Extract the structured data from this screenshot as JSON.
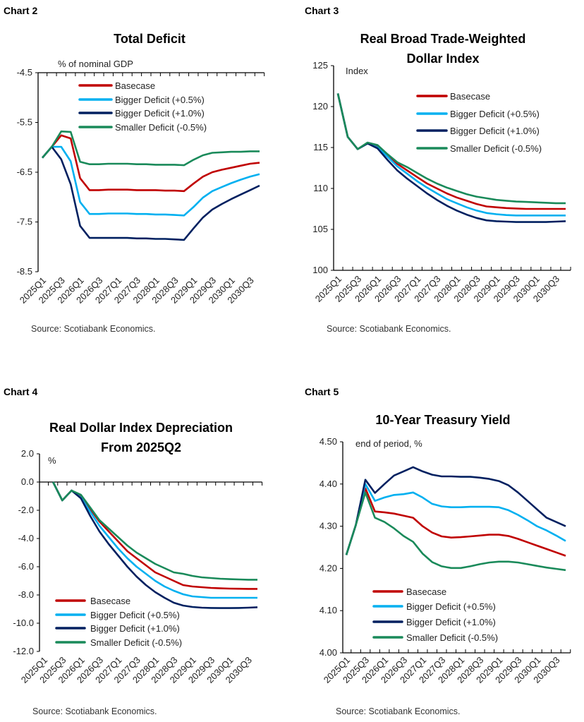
{
  "colors": {
    "Basecase": "#C00000",
    "Bigger Deficit (+0.5%)": "#00B0F0",
    "Bigger Deficit (+1.0%)": "#002060",
    "Smaller Deficit (-0.5%)": "#1A8A5A"
  },
  "chart_data": [
    {
      "header": "Chart 2",
      "title": [
        "Total Deficit"
      ],
      "type": "line",
      "unit_label": "% of nominal GDP",
      "x": [
        "2025Q1",
        "2025Q2",
        "2025Q3",
        "2025Q4",
        "2026Q1",
        "2026Q2",
        "2026Q3",
        "2026Q4",
        "2027Q1",
        "2027Q2",
        "2027Q3",
        "2027Q4",
        "2028Q1",
        "2028Q2",
        "2028Q3",
        "2028Q4",
        "2029Q1",
        "2029Q2",
        "2029Q3",
        "2029Q4",
        "2030Q1",
        "2030Q2",
        "2030Q3",
        "2030Q4"
      ],
      "xticklabels": [
        "2025Q1",
        "2025Q3",
        "2026Q1",
        "2026Q3",
        "2027Q1",
        "2027Q3",
        "2028Q1",
        "2028Q3",
        "2029Q1",
        "2029Q3",
        "2030Q1",
        "2030Q3"
      ],
      "ylim": [
        -8.5,
        -4.5
      ],
      "yticks": [
        "-4.5",
        "-5.5",
        "-6.5",
        "-7.5",
        "-8.5"
      ],
      "grid": false,
      "legend": "top",
      "source": "Source: Scotiabank Economics.",
      "series": [
        {
          "name": "Basecase",
          "values": [
            -6.21,
            -5.99,
            -5.76,
            -5.82,
            -6.62,
            -6.86,
            -6.86,
            -6.85,
            -6.85,
            -6.85,
            -6.86,
            -6.86,
            -6.86,
            -6.87,
            -6.87,
            -6.88,
            -6.73,
            -6.59,
            -6.5,
            -6.45,
            -6.41,
            -6.37,
            -6.33,
            -6.31
          ]
        },
        {
          "name": "Bigger Deficit (+0.5%)",
          "values": [
            -6.21,
            -5.99,
            -5.99,
            -6.28,
            -7.1,
            -7.34,
            -7.34,
            -7.33,
            -7.33,
            -7.33,
            -7.34,
            -7.34,
            -7.35,
            -7.35,
            -7.36,
            -7.37,
            -7.2,
            -7.01,
            -6.88,
            -6.8,
            -6.72,
            -6.65,
            -6.59,
            -6.54
          ]
        },
        {
          "name": "Bigger Deficit (+1.0%)",
          "values": [
            -6.21,
            -5.99,
            -6.24,
            -6.74,
            -7.58,
            -7.82,
            -7.82,
            -7.82,
            -7.82,
            -7.82,
            -7.83,
            -7.83,
            -7.84,
            -7.84,
            -7.85,
            -7.86,
            -7.63,
            -7.41,
            -7.25,
            -7.14,
            -7.04,
            -6.95,
            -6.86,
            -6.77
          ]
        },
        {
          "name": "Smaller Deficit (-0.5%)",
          "values": [
            -6.21,
            -5.99,
            -5.68,
            -5.69,
            -6.29,
            -6.34,
            -6.34,
            -6.33,
            -6.33,
            -6.33,
            -6.34,
            -6.34,
            -6.35,
            -6.35,
            -6.35,
            -6.36,
            -6.25,
            -6.16,
            -6.11,
            -6.1,
            -6.09,
            -6.09,
            -6.08,
            -6.08
          ]
        }
      ]
    },
    {
      "header": "Chart 3",
      "title": [
        "Real Broad Trade-Weighted",
        "Dollar Index"
      ],
      "type": "line",
      "unit_label": "Index",
      "x": [
        "2025Q1",
        "2025Q2",
        "2025Q3",
        "2025Q4",
        "2026Q1",
        "2026Q2",
        "2026Q3",
        "2026Q4",
        "2027Q1",
        "2027Q2",
        "2027Q3",
        "2027Q4",
        "2028Q1",
        "2028Q2",
        "2028Q3",
        "2028Q4",
        "2029Q1",
        "2029Q2",
        "2029Q3",
        "2029Q4",
        "2030Q1",
        "2030Q2",
        "2030Q3",
        "2030Q4"
      ],
      "xticklabels": [
        "2025Q1",
        "2025Q3",
        "2026Q1",
        "2026Q3",
        "2027Q1",
        "2027Q3",
        "2028Q1",
        "2028Q3",
        "2029Q1",
        "2029Q3",
        "2030Q1",
        "2030Q3"
      ],
      "ylim": [
        100,
        125
      ],
      "yticks": [
        "125",
        "120",
        "115",
        "110",
        "105",
        "100"
      ],
      "grid": false,
      "legend": "top-right",
      "source": "Source: Scotiabank Economics.",
      "series": [
        {
          "name": "Basecase",
          "values": [
            121.6,
            116.3,
            114.8,
            115.5,
            115.1,
            114.0,
            113.0,
            112.2,
            111.4,
            110.6,
            110.0,
            109.4,
            108.9,
            108.5,
            108.1,
            107.8,
            107.7,
            107.6,
            107.55,
            107.5,
            107.5,
            107.5,
            107.5,
            107.5
          ]
        },
        {
          "name": "Bigger Deficit (+0.5%)",
          "values": [
            121.6,
            116.3,
            114.8,
            115.5,
            115.0,
            113.9,
            112.7,
            111.8,
            110.9,
            110.1,
            109.4,
            108.7,
            108.2,
            107.7,
            107.3,
            107.0,
            106.85,
            106.75,
            106.7,
            106.7,
            106.7,
            106.7,
            106.7,
            106.7
          ]
        },
        {
          "name": "Bigger Deficit (+1.0%)",
          "values": [
            121.6,
            116.3,
            114.8,
            115.5,
            114.9,
            113.5,
            112.2,
            111.2,
            110.3,
            109.4,
            108.6,
            107.9,
            107.3,
            106.8,
            106.4,
            106.1,
            106.0,
            105.95,
            105.9,
            105.9,
            105.9,
            105.9,
            105.95,
            106.0
          ]
        },
        {
          "name": "Smaller Deficit (-0.5%)",
          "values": [
            121.6,
            116.3,
            114.8,
            115.6,
            115.3,
            114.2,
            113.2,
            112.6,
            111.9,
            111.2,
            110.6,
            110.1,
            109.7,
            109.3,
            109.0,
            108.8,
            108.6,
            108.5,
            108.4,
            108.35,
            108.3,
            108.25,
            108.2,
            108.2
          ]
        }
      ]
    },
    {
      "header": "Chart 4",
      "title": [
        "Real Dollar Index Depreciation",
        "From 2025Q2"
      ],
      "type": "line",
      "unit_label": "%",
      "x": [
        "2025Q1",
        "2025Q2",
        "2025Q3",
        "2025Q4",
        "2026Q1",
        "2026Q2",
        "2026Q3",
        "2026Q4",
        "2027Q1",
        "2027Q2",
        "2027Q3",
        "2027Q4",
        "2028Q1",
        "2028Q2",
        "2028Q3",
        "2028Q4",
        "2029Q1",
        "2029Q2",
        "2029Q3",
        "2029Q4",
        "2030Q1",
        "2030Q2",
        "2030Q3",
        "2030Q4"
      ],
      "xticklabels": [
        "2025Q1",
        "2025Q3",
        "2026Q1",
        "2026Q3",
        "2027Q1",
        "2027Q3",
        "2028Q1",
        "2028Q3",
        "2029Q1",
        "2029Q3",
        "2030Q1",
        "2030Q3"
      ],
      "ylim": [
        -12,
        2
      ],
      "yticks": [
        "2.0",
        "0.0",
        "-2.0",
        "-4.0",
        "-6.0",
        "-8.0",
        "-10.0",
        "-12.0"
      ],
      "grid": false,
      "legend": "bottom-left",
      "source": "Source: Scotiabank Economics.",
      "series": [
        {
          "name": "Basecase",
          "values": [
            null,
            0,
            -1.3,
            -0.6,
            -1.0,
            -1.9,
            -2.8,
            -3.5,
            -4.2,
            -4.9,
            -5.4,
            -5.9,
            -6.4,
            -6.7,
            -7.0,
            -7.3,
            -7.4,
            -7.45,
            -7.5,
            -7.53,
            -7.55,
            -7.56,
            -7.57,
            -7.57
          ]
        },
        {
          "name": "Bigger Deficit (+0.5%)",
          "values": [
            null,
            0,
            -1.3,
            -0.6,
            -1.1,
            -2.1,
            -3.1,
            -3.9,
            -4.7,
            -5.4,
            -6.0,
            -6.5,
            -7.0,
            -7.4,
            -7.7,
            -7.95,
            -8.1,
            -8.15,
            -8.2,
            -8.2,
            -8.2,
            -8.2,
            -8.2,
            -8.2
          ]
        },
        {
          "name": "Bigger Deficit (+1.0%)",
          "values": [
            null,
            0,
            -1.3,
            -0.6,
            -1.15,
            -2.4,
            -3.5,
            -4.4,
            -5.2,
            -6.0,
            -6.7,
            -7.3,
            -7.8,
            -8.2,
            -8.55,
            -8.75,
            -8.85,
            -8.9,
            -8.92,
            -8.93,
            -8.93,
            -8.92,
            -8.9,
            -8.87
          ]
        },
        {
          "name": "Smaller Deficit (-0.5%)",
          "values": [
            null,
            0,
            -1.3,
            -0.6,
            -0.9,
            -1.8,
            -2.7,
            -3.3,
            -3.9,
            -4.5,
            -5.0,
            -5.4,
            -5.8,
            -6.1,
            -6.4,
            -6.5,
            -6.65,
            -6.75,
            -6.8,
            -6.85,
            -6.88,
            -6.9,
            -6.92,
            -6.92
          ]
        }
      ]
    },
    {
      "header": "Chart 5",
      "title": [
        "10-Year Treasury Yield"
      ],
      "type": "line",
      "unit_label": "end of period, %",
      "x": [
        "2025Q1",
        "2025Q2",
        "2025Q3",
        "2025Q4",
        "2026Q1",
        "2026Q2",
        "2026Q3",
        "2026Q4",
        "2027Q1",
        "2027Q2",
        "2027Q3",
        "2027Q4",
        "2028Q1",
        "2028Q2",
        "2028Q3",
        "2028Q4",
        "2029Q1",
        "2029Q2",
        "2029Q3",
        "2029Q4",
        "2030Q1",
        "2030Q2",
        "2030Q3",
        "2030Q4"
      ],
      "xticklabels": [
        "2025Q1",
        "2025Q3",
        "2026Q1",
        "2026Q3",
        "2027Q1",
        "2027Q3",
        "2028Q1",
        "2028Q3",
        "2029Q1",
        "2029Q3",
        "2030Q1",
        "2030Q3"
      ],
      "ylim": [
        4.0,
        4.5
      ],
      "yticks": [
        "4.50",
        "4.40",
        "4.30",
        "4.20",
        "4.10",
        "4.00"
      ],
      "grid": false,
      "legend": "bottom-left",
      "source": "Source: Scotiabank Economics.",
      "series": [
        {
          "name": "Basecase",
          "values": [
            4.232,
            4.303,
            4.39,
            4.335,
            4.333,
            4.33,
            4.325,
            4.32,
            4.3,
            4.285,
            4.276,
            4.273,
            4.274,
            4.276,
            4.278,
            4.28,
            4.28,
            4.277,
            4.27,
            4.262,
            4.254,
            4.246,
            4.238,
            4.23
          ]
        },
        {
          "name": "Bigger Deficit (+0.5%)",
          "values": [
            4.232,
            4.303,
            4.4,
            4.36,
            4.368,
            4.374,
            4.376,
            4.38,
            4.368,
            4.353,
            4.347,
            4.345,
            4.345,
            4.346,
            4.346,
            4.346,
            4.345,
            4.338,
            4.327,
            4.314,
            4.3,
            4.29,
            4.278,
            4.265
          ]
        },
        {
          "name": "Bigger Deficit (+1.0%)",
          "values": [
            4.232,
            4.303,
            4.41,
            4.379,
            4.4,
            4.42,
            4.43,
            4.44,
            4.43,
            4.422,
            4.418,
            4.418,
            4.417,
            4.417,
            4.415,
            4.412,
            4.407,
            4.397,
            4.38,
            4.36,
            4.34,
            4.32,
            4.31,
            4.3
          ]
        },
        {
          "name": "Smaller Deficit (-0.5%)",
          "values": [
            4.232,
            4.303,
            4.38,
            4.32,
            4.31,
            4.295,
            4.277,
            4.263,
            4.235,
            4.215,
            4.205,
            4.201,
            4.201,
            4.205,
            4.21,
            4.214,
            4.216,
            4.216,
            4.214,
            4.21,
            4.206,
            4.202,
            4.199,
            4.196
          ]
        }
      ]
    }
  ]
}
